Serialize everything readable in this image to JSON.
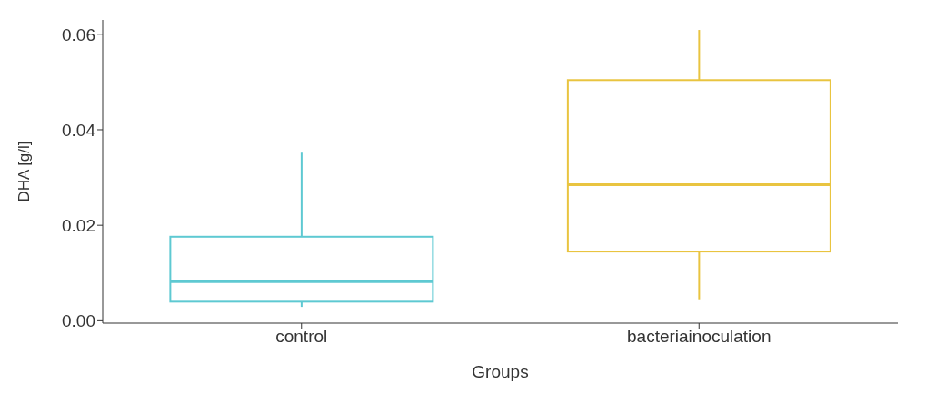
{
  "chart_data": {
    "type": "box",
    "xlabel": "Groups",
    "ylabel": "DHA [g/l]",
    "categories": [
      "control",
      "bacteriainoculation"
    ],
    "colors": [
      "#5ec9d2",
      "#e9c440"
    ],
    "boxes": [
      {
        "low": 0.0029,
        "q1": 0.004,
        "median": 0.0082,
        "q3": 0.0176,
        "high": 0.0352
      },
      {
        "low": 0.0045,
        "q1": 0.0145,
        "median": 0.0285,
        "q3": 0.0504,
        "high": 0.0609
      }
    ],
    "ylim": [
      -0.0005,
      0.063
    ],
    "yticks": [
      {
        "value": 0,
        "label": "0.00"
      },
      {
        "value": 0.02,
        "label": "0.02"
      },
      {
        "value": 0.04,
        "label": "0.04"
      },
      {
        "value": 0.06,
        "label": "0.06"
      }
    ],
    "grid": false,
    "legend": false
  }
}
